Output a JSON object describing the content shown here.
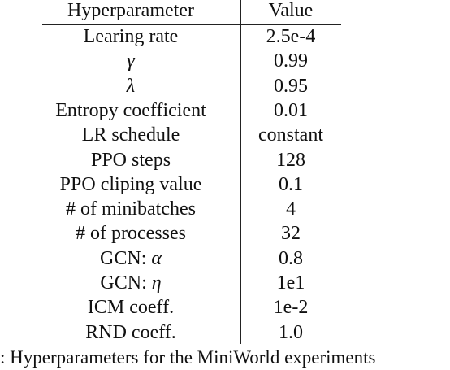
{
  "table": {
    "header": [
      "Hyperparameter",
      "Value"
    ],
    "rows": [
      [
        "Learing rate",
        "2.5e-4"
      ],
      [
        "γ",
        "0.99"
      ],
      [
        "λ",
        "0.95"
      ],
      [
        "Entropy coefficient",
        "0.01"
      ],
      [
        "LR schedule",
        "constant"
      ],
      [
        "PPO steps",
        "128"
      ],
      [
        "PPO cliping value",
        "0.1"
      ],
      [
        "# of minibatches",
        "4"
      ],
      [
        "# of processes",
        "32"
      ],
      [
        "GCN: α",
        "0.8"
      ],
      [
        "GCN: η",
        "1e1"
      ],
      [
        "ICM coeff.",
        "1e-2"
      ],
      [
        "RND coeff.",
        "1.0"
      ]
    ],
    "caption": ": Hyperparameters for the MiniWorld experiments"
  }
}
